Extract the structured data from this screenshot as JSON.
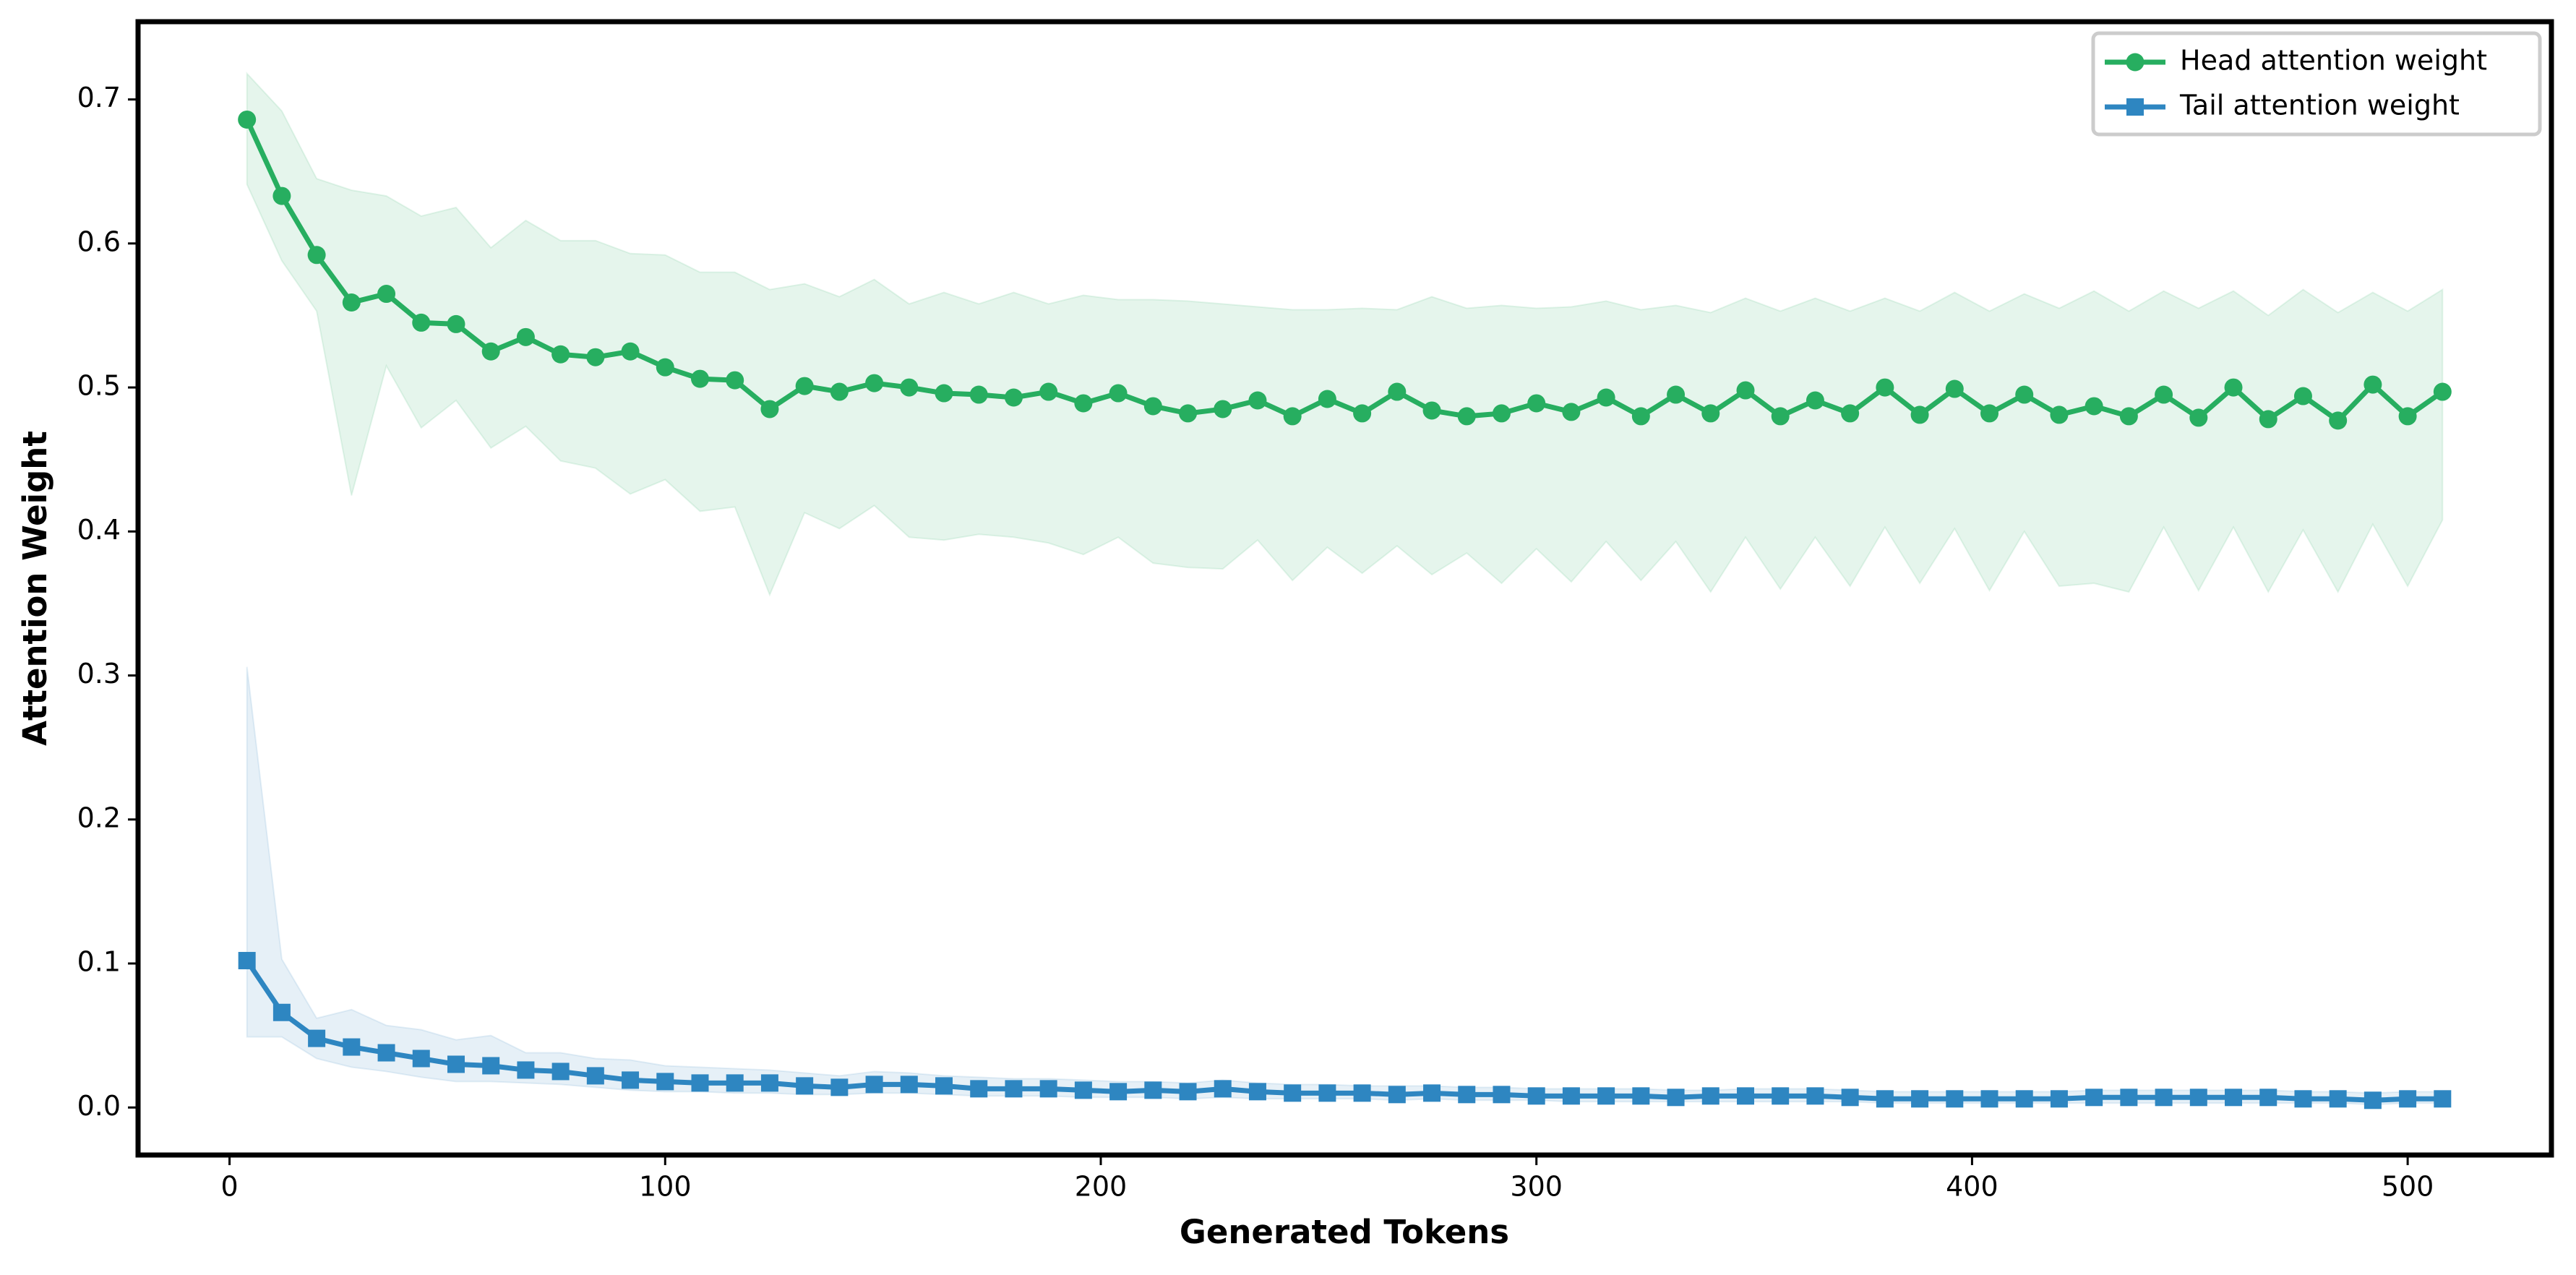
{
  "chart_data": {
    "type": "line",
    "xlabel": "Generated Tokens",
    "ylabel": "Attention Weight",
    "x": [
      4,
      12,
      20,
      28,
      36,
      44,
      52,
      60,
      68,
      76,
      84,
      92,
      100,
      108,
      116,
      124,
      132,
      140,
      148,
      156,
      164,
      172,
      180,
      188,
      196,
      204,
      212,
      220,
      228,
      236,
      244,
      252,
      260,
      268,
      276,
      284,
      292,
      300,
      308,
      316,
      324,
      332,
      340,
      348,
      356,
      364,
      372,
      380,
      388,
      396,
      404,
      412,
      420,
      428,
      436,
      444,
      452,
      460,
      468,
      476,
      484,
      492,
      500,
      508
    ],
    "series": [
      {
        "name": "Head attention weight",
        "color": "#27ae60",
        "marker": "circle",
        "values": [
          0.686,
          0.633,
          0.592,
          0.559,
          0.565,
          0.545,
          0.544,
          0.525,
          0.535,
          0.523,
          0.521,
          0.525,
          0.514,
          0.506,
          0.505,
          0.485,
          0.501,
          0.497,
          0.503,
          0.5,
          0.496,
          0.495,
          0.493,
          0.497,
          0.489,
          0.496,
          0.487,
          0.482,
          0.485,
          0.491,
          0.48,
          0.492,
          0.482,
          0.497,
          0.484,
          0.48,
          0.482,
          0.489,
          0.483,
          0.493,
          0.48,
          0.495,
          0.482,
          0.498,
          0.48,
          0.491,
          0.482,
          0.5,
          0.481,
          0.499,
          0.482,
          0.495,
          0.481,
          0.487,
          0.48,
          0.495,
          0.479,
          0.5,
          0.478,
          0.494,
          0.477,
          0.502,
          0.48,
          0.497
        ],
        "band_upper": [
          0.718,
          0.692,
          0.645,
          0.637,
          0.633,
          0.619,
          0.625,
          0.597,
          0.616,
          0.602,
          0.602,
          0.593,
          0.592,
          0.58,
          0.58,
          0.568,
          0.572,
          0.563,
          0.575,
          0.558,
          0.566,
          0.558,
          0.566,
          0.558,
          0.564,
          0.561,
          0.561,
          0.56,
          0.558,
          0.556,
          0.554,
          0.554,
          0.555,
          0.554,
          0.563,
          0.555,
          0.557,
          0.555,
          0.556,
          0.56,
          0.554,
          0.557,
          0.552,
          0.562,
          0.553,
          0.562,
          0.553,
          0.562,
          0.553,
          0.566,
          0.553,
          0.565,
          0.555,
          0.567,
          0.553,
          0.567,
          0.555,
          0.567,
          0.55,
          0.568,
          0.552,
          0.566,
          0.553,
          0.568
        ],
        "band_lower": [
          0.641,
          0.588,
          0.553,
          0.425,
          0.515,
          0.472,
          0.491,
          0.458,
          0.473,
          0.449,
          0.444,
          0.426,
          0.436,
          0.414,
          0.417,
          0.356,
          0.413,
          0.402,
          0.418,
          0.396,
          0.394,
          0.398,
          0.396,
          0.392,
          0.384,
          0.396,
          0.378,
          0.375,
          0.374,
          0.394,
          0.366,
          0.389,
          0.371,
          0.39,
          0.37,
          0.385,
          0.364,
          0.388,
          0.365,
          0.393,
          0.366,
          0.393,
          0.358,
          0.396,
          0.36,
          0.396,
          0.362,
          0.403,
          0.364,
          0.402,
          0.359,
          0.4,
          0.362,
          0.364,
          0.358,
          0.403,
          0.359,
          0.403,
          0.358,
          0.401,
          0.358,
          0.405,
          0.362,
          0.408
        ]
      },
      {
        "name": "Tail attention weight",
        "color": "#2e86c1",
        "marker": "square",
        "values": [
          0.102,
          0.066,
          0.048,
          0.042,
          0.038,
          0.034,
          0.03,
          0.029,
          0.026,
          0.025,
          0.022,
          0.019,
          0.018,
          0.017,
          0.017,
          0.017,
          0.015,
          0.014,
          0.016,
          0.016,
          0.015,
          0.013,
          0.013,
          0.013,
          0.012,
          0.011,
          0.012,
          0.011,
          0.013,
          0.011,
          0.01,
          0.01,
          0.01,
          0.009,
          0.01,
          0.009,
          0.009,
          0.008,
          0.008,
          0.008,
          0.008,
          0.007,
          0.008,
          0.008,
          0.008,
          0.008,
          0.007,
          0.006,
          0.006,
          0.006,
          0.006,
          0.006,
          0.006,
          0.007,
          0.007,
          0.007,
          0.007,
          0.007,
          0.007,
          0.006,
          0.006,
          0.005,
          0.006,
          0.006
        ],
        "band_upper": [
          0.306,
          0.103,
          0.062,
          0.068,
          0.057,
          0.054,
          0.047,
          0.05,
          0.038,
          0.038,
          0.034,
          0.033,
          0.029,
          0.028,
          0.027,
          0.026,
          0.024,
          0.022,
          0.025,
          0.024,
          0.022,
          0.021,
          0.02,
          0.02,
          0.019,
          0.018,
          0.018,
          0.017,
          0.019,
          0.017,
          0.016,
          0.016,
          0.015,
          0.015,
          0.015,
          0.014,
          0.014,
          0.013,
          0.013,
          0.013,
          0.013,
          0.012,
          0.012,
          0.013,
          0.013,
          0.013,
          0.012,
          0.011,
          0.011,
          0.011,
          0.011,
          0.011,
          0.011,
          0.012,
          0.012,
          0.012,
          0.012,
          0.012,
          0.012,
          0.011,
          0.011,
          0.01,
          0.011,
          0.011
        ],
        "band_lower": [
          0.049,
          0.049,
          0.034,
          0.028,
          0.025,
          0.021,
          0.018,
          0.018,
          0.017,
          0.016,
          0.014,
          0.012,
          0.011,
          0.011,
          0.01,
          0.01,
          0.009,
          0.009,
          0.01,
          0.01,
          0.009,
          0.008,
          0.008,
          0.008,
          0.007,
          0.007,
          0.007,
          0.006,
          0.007,
          0.006,
          0.006,
          0.006,
          0.006,
          0.005,
          0.006,
          0.005,
          0.005,
          0.005,
          0.004,
          0.004,
          0.004,
          0.004,
          0.004,
          0.004,
          0.004,
          0.004,
          0.004,
          0.003,
          0.003,
          0.003,
          0.003,
          0.003,
          0.003,
          0.003,
          0.003,
          0.003,
          0.003,
          0.003,
          0.003,
          0.003,
          0.003,
          0.002,
          0.003,
          0.003
        ]
      }
    ],
    "xlim": [
      -21,
      533
    ],
    "xticks": [
      0,
      100,
      200,
      300,
      400,
      500
    ],
    "ylim": [
      -0.033,
      0.754
    ],
    "yticks": [
      {
        "value": 0,
        "label": "0.0"
      },
      0.1,
      0.2,
      0.3,
      0.4,
      0.5,
      0.6,
      0.7
    ],
    "grid": false,
    "legend": "upper right"
  }
}
